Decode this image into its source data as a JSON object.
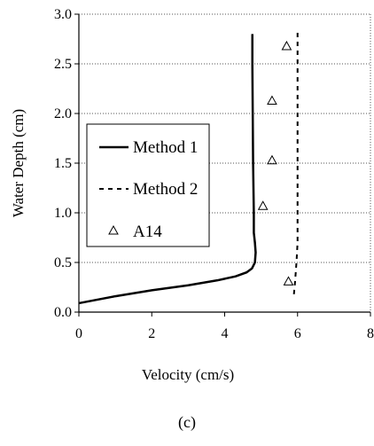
{
  "chart_data": {
    "type": "line",
    "title": "",
    "xlabel": "Velocity (cm/s)",
    "ylabel": "Water Depth (cm)",
    "xlim": [
      0,
      8
    ],
    "ylim": [
      0,
      3.0
    ],
    "x_ticks": [
      "0",
      "2",
      "4",
      "6",
      "8"
    ],
    "y_ticks": [
      "0.0",
      "0.5",
      "1.0",
      "1.5",
      "2.0",
      "2.5",
      "3.0"
    ],
    "grid": "horizontal dotted",
    "legend_position": "left-middle",
    "series": [
      {
        "name": "Method 1",
        "style": "solid-line",
        "color": "#000000",
        "points": [
          [
            0.0,
            0.09
          ],
          [
            1.0,
            0.16
          ],
          [
            2.0,
            0.22
          ],
          [
            3.0,
            0.27
          ],
          [
            3.8,
            0.32
          ],
          [
            4.3,
            0.36
          ],
          [
            4.6,
            0.4
          ],
          [
            4.75,
            0.44
          ],
          [
            4.83,
            0.5
          ],
          [
            4.85,
            0.6
          ],
          [
            4.83,
            0.7
          ],
          [
            4.8,
            0.8
          ],
          [
            4.8,
            1.0
          ],
          [
            4.78,
            1.5
          ],
          [
            4.77,
            2.0
          ],
          [
            4.76,
            2.5
          ],
          [
            4.76,
            2.8
          ]
        ]
      },
      {
        "name": "Method 2",
        "style": "dashed-line",
        "color": "#000000",
        "points": [
          [
            5.9,
            0.18
          ],
          [
            5.93,
            0.3
          ],
          [
            5.97,
            0.5
          ],
          [
            6.0,
            0.7
          ],
          [
            6.0,
            1.0
          ],
          [
            6.0,
            1.5
          ],
          [
            6.0,
            2.0
          ],
          [
            6.0,
            2.5
          ],
          [
            6.0,
            2.82
          ]
        ]
      },
      {
        "name": "A14",
        "style": "triangle-markers",
        "color": "#000000",
        "points": [
          [
            5.7,
            2.67
          ],
          [
            5.3,
            2.12
          ],
          [
            5.3,
            1.52
          ],
          [
            5.05,
            1.06
          ],
          [
            5.75,
            0.3
          ]
        ]
      }
    ]
  },
  "panel_label": "(c)"
}
